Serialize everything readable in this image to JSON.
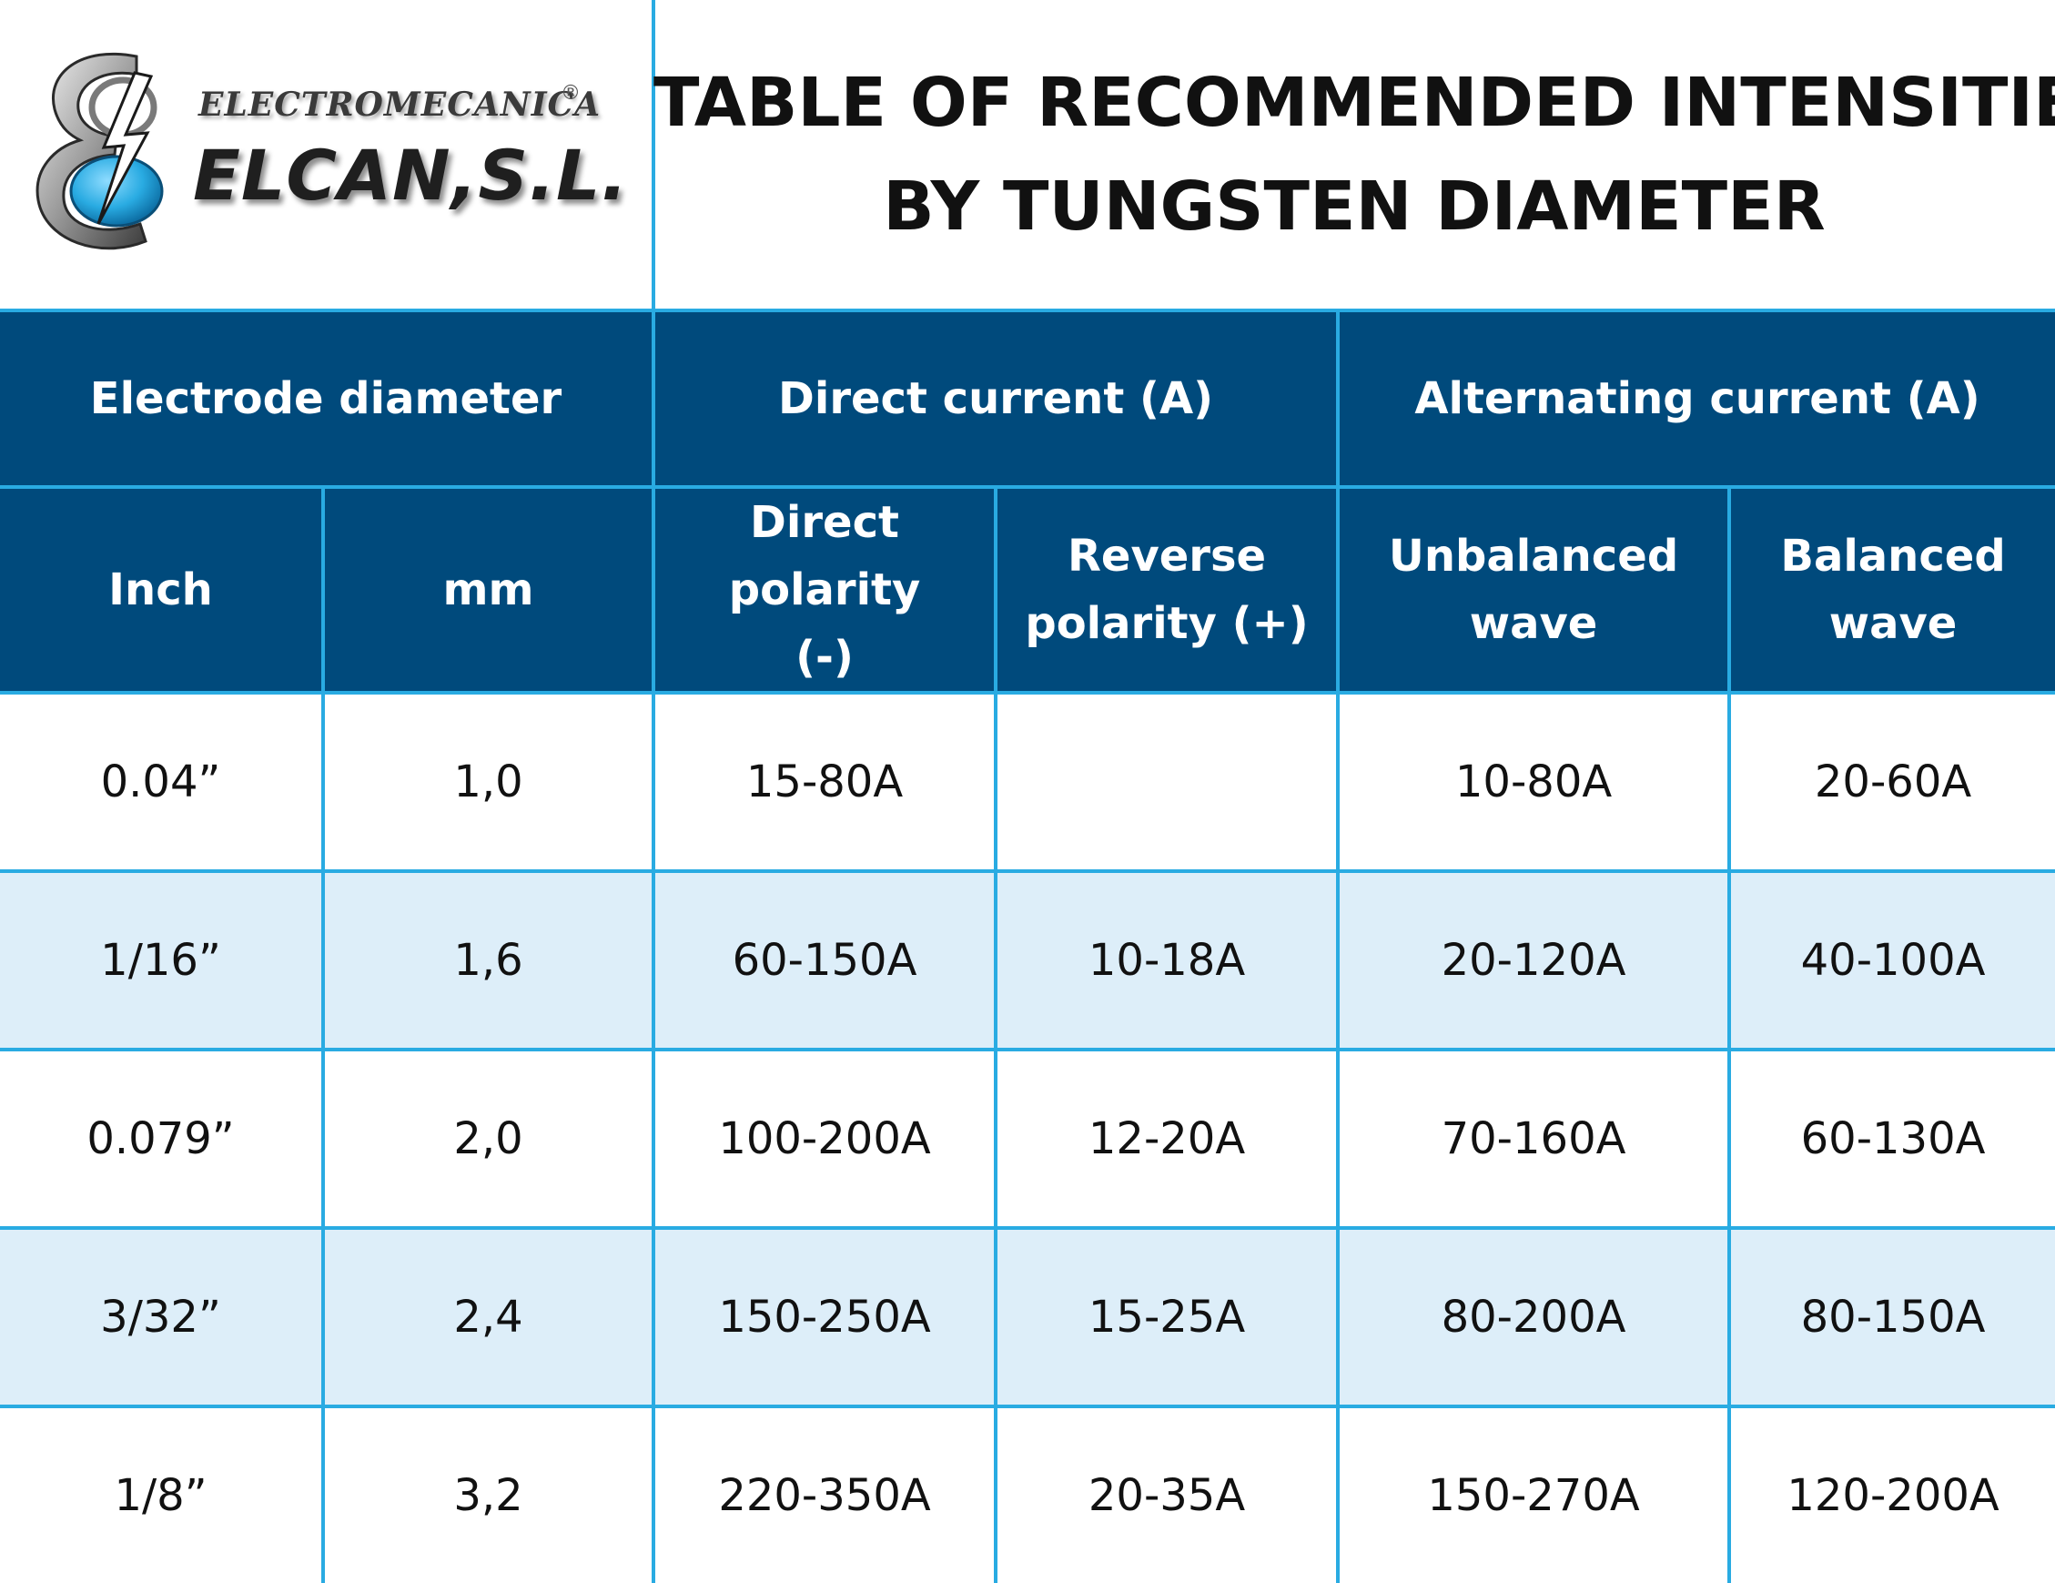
{
  "logo": {
    "top_text": "ELECTROMECANICA",
    "registered_mark": "®",
    "main_text": "ELCAN,S.L."
  },
  "title": {
    "line1": "TABLE OF RECOMMENDED INTENSITIES",
    "line2": "BY TUNGSTEN DIAMETER"
  },
  "table": {
    "group_headers": {
      "electrode": "Electrode diameter",
      "direct": "Direct current (A)",
      "alternating": "Alternating current (A)"
    },
    "sub_headers": {
      "inch": "Inch",
      "mm": "mm",
      "direct_polarity_l1": "Direct polarity",
      "direct_polarity_l2": "(-)",
      "reverse_polarity_l1": "Reverse",
      "reverse_polarity_l2": "polarity (+)",
      "unbalanced_l1": "Unbalanced",
      "unbalanced_l2": "wave",
      "balanced_l1": "Balanced",
      "balanced_l2": "wave"
    },
    "rows": [
      {
        "inch": "0.04”",
        "mm": "1,0",
        "direct": "15-80A",
        "reverse": "",
        "unbalanced": "10-80A",
        "balanced": "20-60A"
      },
      {
        "inch": "1/16”",
        "mm": "1,6",
        "direct": "60-150A",
        "reverse": "10-18A",
        "unbalanced": "20-120A",
        "balanced": "40-100A"
      },
      {
        "inch": "0.079”",
        "mm": "2,0",
        "direct": "100-200A",
        "reverse": "12-20A",
        "unbalanced": "70-160A",
        "balanced": "60-130A"
      },
      {
        "inch": "3/32”",
        "mm": "2,4",
        "direct": "150-250A",
        "reverse": "15-25A",
        "unbalanced": "80-200A",
        "balanced": "80-150A"
      },
      {
        "inch": "1/8”",
        "mm": "3,2",
        "direct": "220-350A",
        "reverse": "20-35A",
        "unbalanced": "150-270A",
        "balanced": "120-200A"
      }
    ]
  },
  "colors": {
    "header_bg": "#004a7c",
    "grid_line": "#29abe2",
    "alt_row_bg": "#ddeef9",
    "logo_blue": "#29abe2"
  }
}
